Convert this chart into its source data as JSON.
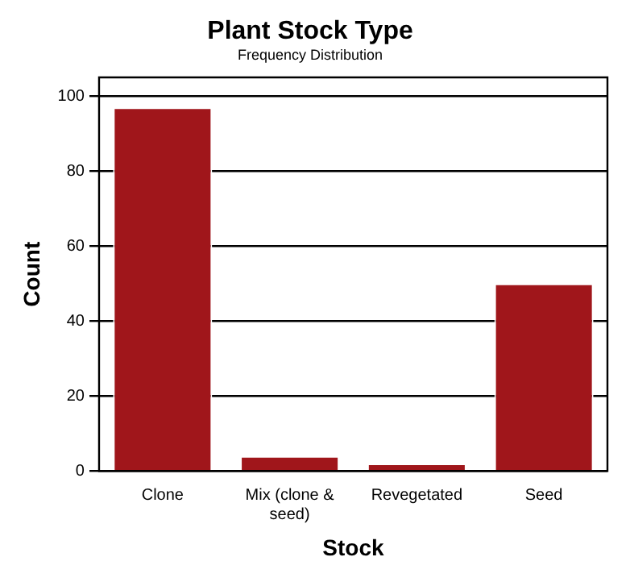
{
  "chart_data": {
    "type": "bar",
    "title": "Plant Stock Type",
    "subtitle": "Frequency Distribution",
    "xlabel": "Stock",
    "ylabel": "Count",
    "categories": [
      "Clone",
      "Mix (clone & seed)",
      "Revegetated",
      "Seed"
    ],
    "values": [
      97,
      4,
      2,
      50
    ],
    "color": "#a0161b",
    "ylim": [
      0,
      105
    ],
    "yticks": [
      0,
      20,
      40,
      60,
      80,
      100
    ],
    "grid": "y",
    "legend": false
  }
}
